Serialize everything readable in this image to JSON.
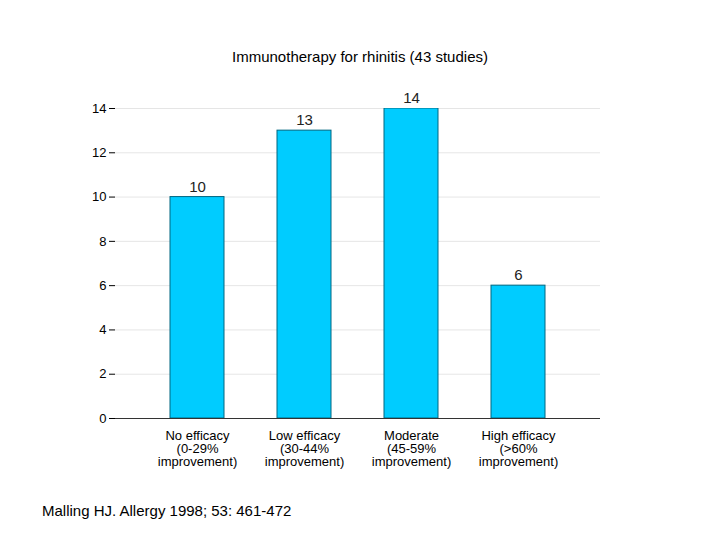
{
  "chart_data": {
    "type": "bar",
    "title": "Immunotherapy for rhinitis (43 studies)",
    "categories": [
      "No efficacy\n(0-29%\nimprovement)",
      "Low efficacy\n(30-44%\nimprovement)",
      "Moderate\n(45-59%\nimprovement)",
      "High efficacy\n(>60%\nimprovement)"
    ],
    "values": [
      10,
      13,
      14,
      6
    ],
    "color": "#00ccff",
    "ylim": [
      0,
      14
    ],
    "yticks": [
      0,
      2,
      4,
      6,
      8,
      10,
      12,
      14
    ],
    "grid": true,
    "data_labels": true,
    "caption": "Malling HJ. Allergy 1998; 53: 461-472"
  }
}
